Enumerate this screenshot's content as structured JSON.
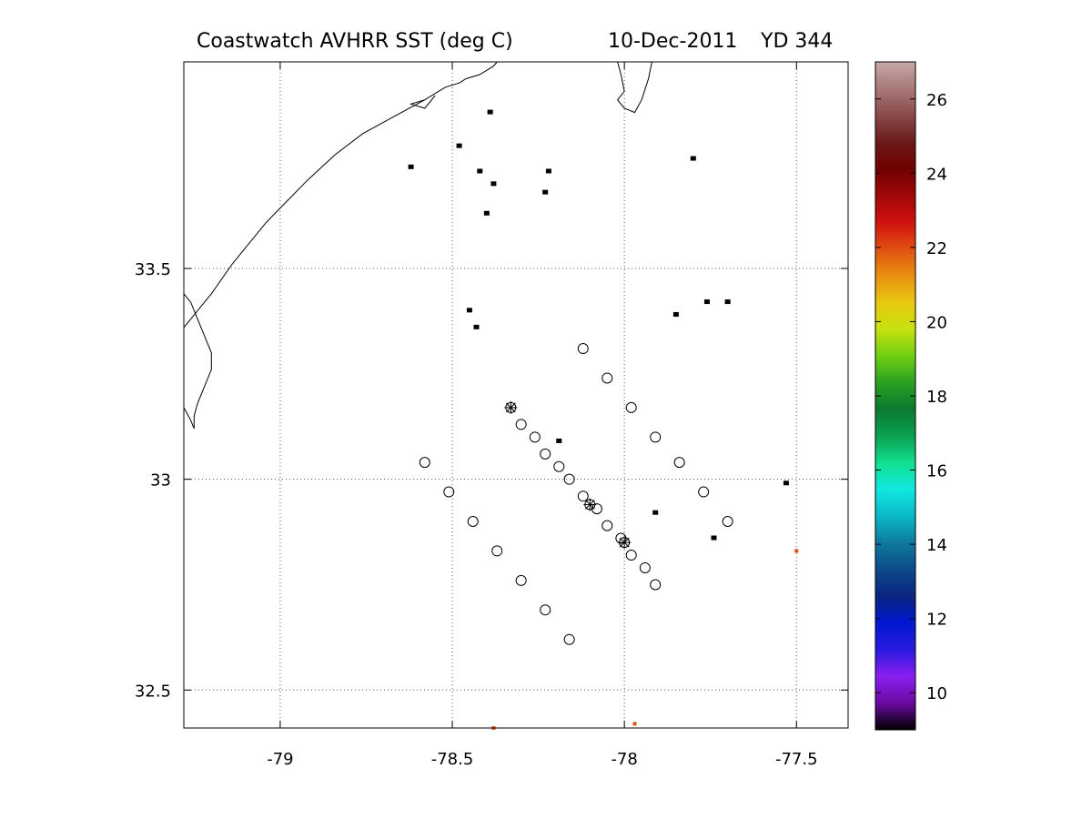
{
  "chart_data": {
    "type": "scatter",
    "title": {
      "left": "Coastwatch   AVHRR   SST  (deg C)",
      "date": "10-Dec-2011",
      "yearday": "YD 344"
    },
    "xlim": [
      -79.28,
      -77.35
    ],
    "ylim": [
      32.41,
      33.99
    ],
    "x_ticks": [
      -79,
      -78.5,
      -78,
      -77.5
    ],
    "x_tick_labels": [
      "-79",
      "-78.5",
      "-78",
      "-77.5"
    ],
    "y_ticks": [
      32.5,
      33,
      33.5
    ],
    "y_tick_labels": [
      "32.5",
      "33",
      "33.5"
    ],
    "grid": true,
    "colorbar": {
      "range": [
        9,
        27
      ],
      "ticks": [
        10,
        12,
        14,
        16,
        18,
        20,
        22,
        24,
        26
      ],
      "tick_labels": [
        "10",
        "12",
        "14",
        "16",
        "18",
        "20",
        "22",
        "24",
        "26"
      ],
      "colors": [
        "#000000",
        "#6a0aa0",
        "#8a1ff0",
        "#2a1ae0",
        "#0018d0",
        "#0a2480",
        "#0e4a8a",
        "#0d7a9c",
        "#0ab8c8",
        "#10e8e0",
        "#10e090",
        "#0aa050",
        "#0c7a30",
        "#2aa020",
        "#70d010",
        "#c8e010",
        "#e8c810",
        "#e89010",
        "#e05010",
        "#d01010",
        "#a00808",
        "#700000",
        "#6a1a1a",
        "#8a4a4a",
        "#a87878",
        "#c8a8a8"
      ]
    },
    "station_circles": [
      {
        "lon": -78.12,
        "lat": 33.31
      },
      {
        "lon": -78.05,
        "lat": 33.24
      },
      {
        "lon": -77.98,
        "lat": 33.17
      },
      {
        "lon": -77.91,
        "lat": 33.1
      },
      {
        "lon": -77.84,
        "lat": 33.04
      },
      {
        "lon": -77.77,
        "lat": 32.97
      },
      {
        "lon": -77.7,
        "lat": 32.9
      },
      {
        "lon": -78.58,
        "lat": 33.04
      },
      {
        "lon": -78.51,
        "lat": 32.97
      },
      {
        "lon": -78.44,
        "lat": 32.9
      },
      {
        "lon": -78.37,
        "lat": 32.83
      },
      {
        "lon": -78.3,
        "lat": 32.76
      },
      {
        "lon": -78.23,
        "lat": 32.69
      },
      {
        "lon": -78.16,
        "lat": 32.62
      },
      {
        "lon": -78.3,
        "lat": 33.13
      },
      {
        "lon": -78.26,
        "lat": 33.1
      },
      {
        "lon": -78.23,
        "lat": 33.06
      },
      {
        "lon": -78.19,
        "lat": 33.03
      },
      {
        "lon": -78.16,
        "lat": 33.0
      },
      {
        "lon": -78.12,
        "lat": 32.96
      },
      {
        "lon": -78.08,
        "lat": 32.93
      },
      {
        "lon": -78.05,
        "lat": 32.89
      },
      {
        "lon": -78.01,
        "lat": 32.86
      },
      {
        "lon": -77.98,
        "lat": 32.82
      },
      {
        "lon": -77.94,
        "lat": 32.79
      },
      {
        "lon": -77.91,
        "lat": 32.75
      }
    ],
    "station_stars": [
      {
        "lon": -78.33,
        "lat": 33.17
      },
      {
        "lon": -78.1,
        "lat": 32.94
      },
      {
        "lon": -78.0,
        "lat": 32.85
      }
    ],
    "sst_pixels_black": [
      {
        "lon": -78.39,
        "lat": 33.87
      },
      {
        "lon": -78.48,
        "lat": 33.79
      },
      {
        "lon": -78.62,
        "lat": 33.74
      },
      {
        "lon": -78.42,
        "lat": 33.73
      },
      {
        "lon": -78.38,
        "lat": 33.7
      },
      {
        "lon": -78.22,
        "lat": 33.73
      },
      {
        "lon": -78.23,
        "lat": 33.68
      },
      {
        "lon": -78.4,
        "lat": 33.63
      },
      {
        "lon": -77.8,
        "lat": 33.76
      },
      {
        "lon": -78.45,
        "lat": 33.4
      },
      {
        "lon": -78.43,
        "lat": 33.36
      },
      {
        "lon": -77.85,
        "lat": 33.39
      },
      {
        "lon": -77.76,
        "lat": 33.42
      },
      {
        "lon": -77.7,
        "lat": 33.42
      },
      {
        "lon": -78.19,
        "lat": 33.09
      },
      {
        "lon": -77.53,
        "lat": 32.99
      },
      {
        "lon": -77.91,
        "lat": 32.92
      },
      {
        "lon": -77.74,
        "lat": 32.86
      }
    ],
    "sst_pixels_warm": [
      {
        "lon": -77.5,
        "lat": 32.83,
        "color": "#e05010"
      },
      {
        "lon": -78.38,
        "lat": 32.41,
        "color": "#e05010"
      },
      {
        "lon": -77.97,
        "lat": 32.42,
        "color": "#e05010"
      }
    ],
    "coastline": [
      [
        -79.28,
        33.36
      ],
      [
        -79.23,
        33.41
      ],
      [
        -79.2,
        33.44
      ],
      [
        -79.14,
        33.51
      ],
      [
        -79.09,
        33.56
      ],
      [
        -79.04,
        33.61
      ],
      [
        -78.98,
        33.66
      ],
      [
        -78.92,
        33.71
      ],
      [
        -78.84,
        33.77
      ],
      [
        -78.76,
        33.82
      ],
      [
        -78.67,
        33.86
      ],
      [
        -78.58,
        33.9
      ],
      [
        -78.54,
        33.92
      ],
      [
        -78.52,
        33.93
      ],
      [
        -78.48,
        33.94
      ],
      [
        -78.46,
        33.95
      ],
      [
        -78.42,
        33.96
      ],
      [
        -78.4,
        33.97
      ],
      [
        -78.38,
        33.98
      ],
      [
        -78.37,
        33.99
      ]
    ],
    "coastline_inner": [
      [
        -79.28,
        33.17
      ],
      [
        -79.26,
        33.14
      ],
      [
        -79.25,
        33.12
      ],
      [
        -79.25,
        33.15
      ],
      [
        -79.24,
        33.18
      ],
      [
        -79.22,
        33.22
      ],
      [
        -79.2,
        33.26
      ],
      [
        -79.2,
        33.3
      ],
      [
        -79.22,
        33.34
      ],
      [
        -79.24,
        33.38
      ],
      [
        -79.26,
        33.42
      ],
      [
        -79.28,
        33.44
      ]
    ],
    "coastline_cape": [
      [
        -78.02,
        33.99
      ],
      [
        -78.01,
        33.96
      ],
      [
        -78.0,
        33.92
      ],
      [
        -78.02,
        33.9
      ],
      [
        -78.0,
        33.88
      ],
      [
        -77.97,
        33.87
      ],
      [
        -77.95,
        33.9
      ],
      [
        -77.93,
        33.95
      ],
      [
        -77.92,
        33.99
      ]
    ],
    "coastline_inlet": [
      [
        -78.58,
        33.9
      ],
      [
        -78.62,
        33.89
      ],
      [
        -78.58,
        33.88
      ],
      [
        -78.55,
        33.91
      ]
    ]
  }
}
